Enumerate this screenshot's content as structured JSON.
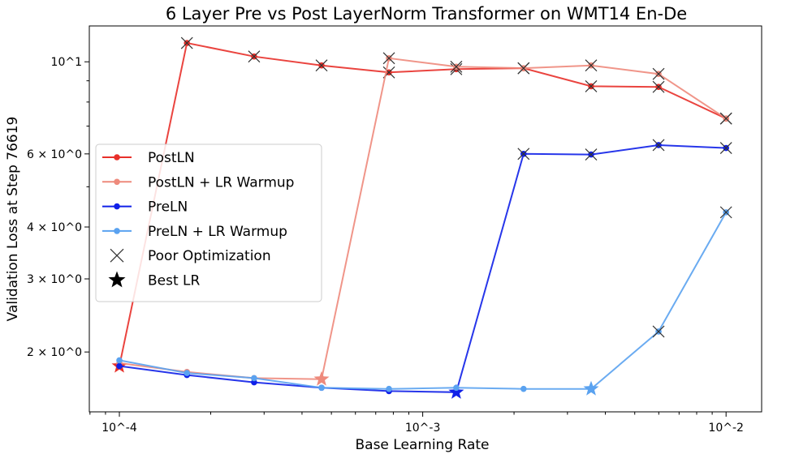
{
  "chart_data": {
    "type": "line",
    "title": "6 Layer Pre vs Post LayerNorm Transformer on WMT14 En-De",
    "xlabel": "Base Learning Rate",
    "ylabel": "Validation Loss at Step 76619",
    "xscale": "log",
    "yscale": "log",
    "xlim": [
      7.96e-05,
      0.0131
    ],
    "ylim": [
      1.435,
      12.2
    ],
    "grid": false,
    "legend_position": "center-left",
    "x_ticks": [
      {
        "value": 0.0001,
        "label": "10^-4"
      },
      {
        "value": 0.001,
        "label": "10^-3"
      },
      {
        "value": 0.01,
        "label": "10^-2"
      }
    ],
    "y_ticks": [
      {
        "value": 2,
        "label": "2 × 10^0"
      },
      {
        "value": 3,
        "label": "3 × 10^0"
      },
      {
        "value": 4,
        "label": "4 × 10^0"
      },
      {
        "value": 6,
        "label": "6 × 10^0"
      },
      {
        "value": 10,
        "label": "10^1"
      }
    ],
    "x": [
      0.0001,
      0.000167,
      0.000278,
      0.000464,
      0.000774,
      0.00129,
      0.00215,
      0.00359,
      0.00599,
      0.01
    ],
    "series": [
      {
        "name": "PostLN",
        "color": "#e8302a",
        "values": [
          1.85,
          11.1,
          10.3,
          9.8,
          9.43,
          9.6,
          9.65,
          8.73,
          8.7,
          7.3
        ],
        "poor_optimization": [
          false,
          true,
          true,
          true,
          true,
          true,
          true,
          true,
          true,
          true
        ],
        "best_index": 0
      },
      {
        "name": "PostLN + LR Warmup",
        "color": "#ee8a7c",
        "values": [
          1.88,
          1.79,
          1.73,
          1.72,
          10.2,
          9.73,
          9.65,
          9.8,
          9.35,
          7.3
        ],
        "poor_optimization": [
          false,
          false,
          false,
          false,
          true,
          true,
          true,
          true,
          true,
          true
        ],
        "best_index": 3
      },
      {
        "name": "PreLN",
        "color": "#1020e8",
        "values": [
          1.85,
          1.76,
          1.69,
          1.64,
          1.61,
          1.6,
          6.0,
          5.98,
          6.3,
          6.2
        ],
        "poor_optimization": [
          false,
          false,
          false,
          false,
          false,
          false,
          true,
          true,
          true,
          true
        ],
        "best_index": 5
      },
      {
        "name": "PreLN + LR Warmup",
        "color": "#5aa2f0",
        "values": [
          1.91,
          1.78,
          1.73,
          1.64,
          1.63,
          1.64,
          1.63,
          1.63,
          2.24,
          4.34
        ],
        "poor_optimization": [
          false,
          false,
          false,
          false,
          false,
          false,
          false,
          false,
          true,
          true
        ],
        "best_index": 7
      }
    ],
    "legend": [
      {
        "label": "PostLN",
        "marker": "line-dot",
        "color": "#e8302a"
      },
      {
        "label": "PostLN + LR Warmup",
        "marker": "line-dot",
        "color": "#ee8a7c"
      },
      {
        "label": "PreLN",
        "marker": "line-dot",
        "color": "#1020e8"
      },
      {
        "label": "PreLN + LR Warmup",
        "marker": "line-dot",
        "color": "#5aa2f0"
      },
      {
        "label": "Poor Optimization",
        "marker": "x",
        "color": "#000000"
      },
      {
        "label": "Best LR",
        "marker": "star",
        "color": "#000000"
      }
    ]
  }
}
